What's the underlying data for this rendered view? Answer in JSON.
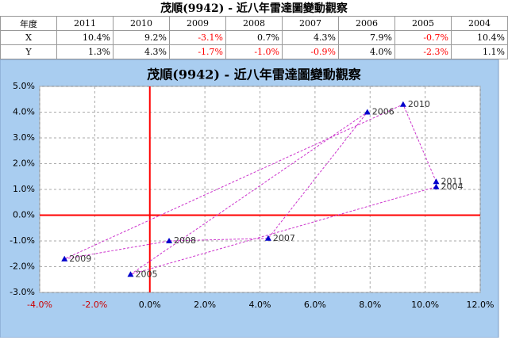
{
  "table": {
    "title": "茂順(9942) - 近八年雷達圖變動觀察",
    "header": [
      "年度",
      "2011",
      "2010",
      "2009",
      "2008",
      "2007",
      "2006",
      "2005",
      "2004"
    ],
    "rows": [
      [
        "X",
        "10.4%",
        "9.2%",
        "-3.1%",
        "0.7%",
        "4.3%",
        "7.9%",
        "-0.7%",
        "10.4%"
      ],
      [
        "Y",
        "1.3%",
        "4.3%",
        "-1.7%",
        "-1.0%",
        "-0.9%",
        "4.0%",
        "-2.3%",
        "1.1%"
      ]
    ]
  },
  "chart_data": {
    "type": "scatter",
    "title": "茂順(9942) - 近八年雷達圖變動觀察",
    "labels": [
      "2011",
      "2010",
      "2009",
      "2008",
      "2007",
      "2006",
      "2005",
      "2004"
    ],
    "x": [
      10.4,
      9.2,
      -3.1,
      0.7,
      4.3,
      7.9,
      -0.7,
      10.4
    ],
    "y": [
      1.3,
      4.3,
      -1.7,
      -1.0,
      -0.9,
      4.0,
      -2.3,
      1.1
    ],
    "color": "#0000cc",
    "line_color": "#cc33cc",
    "axis_color": "#ff0000",
    "xlim": [
      -4,
      12
    ],
    "ylim": [
      -3,
      5
    ],
    "xticks": [
      {
        "value": -4,
        "label": "-4.0%"
      },
      {
        "value": -2,
        "label": "-2.0%"
      },
      {
        "value": 0,
        "label": "0.0%"
      },
      {
        "value": 2,
        "label": "2.0%"
      },
      {
        "value": 4,
        "label": "4.0%"
      },
      {
        "value": 6,
        "label": "6.0%"
      },
      {
        "value": 8,
        "label": "8.0%"
      },
      {
        "value": 10,
        "label": "10.0%"
      },
      {
        "value": 12,
        "label": "12.0%"
      }
    ],
    "yticks": [
      {
        "value": -3,
        "label": "-3.0%"
      },
      {
        "value": -2,
        "label": "-2.0%"
      },
      {
        "value": -1,
        "label": "-1.0%"
      },
      {
        "value": 0,
        "label": "0.0%"
      },
      {
        "value": 1,
        "label": "1.0%"
      },
      {
        "value": 2,
        "label": "2.0%"
      },
      {
        "value": 3,
        "label": "3.0%"
      },
      {
        "value": 4,
        "label": "4.0%"
      },
      {
        "value": 5,
        "label": "5.0%"
      }
    ],
    "grid": true
  }
}
